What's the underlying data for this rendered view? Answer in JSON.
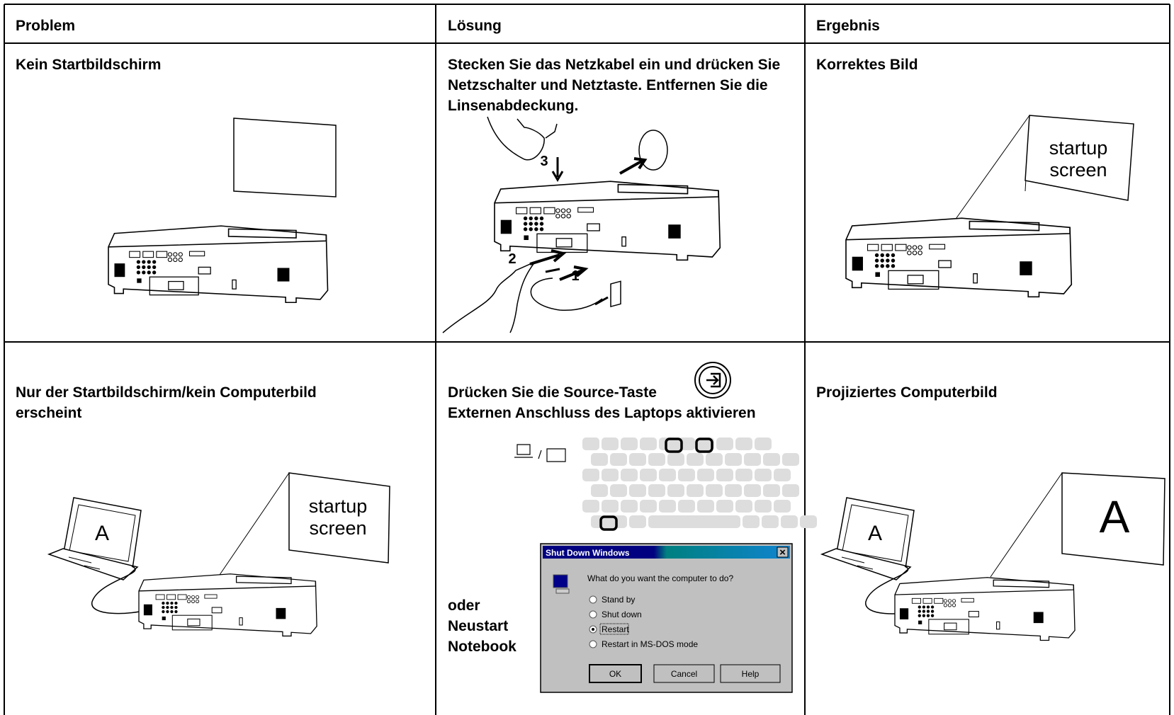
{
  "table": {
    "headers": [
      "Problem",
      "Lösung",
      "Ergebnis"
    ],
    "rows": [
      {
        "problem": "Kein Startbildschirm",
        "solution": [
          "Stecken Sie das Netzkabel ein und drücken Sie Netzschalter und Netztaste. Entfernen Sie die Linsenabdeckung."
        ],
        "result": "Korrektes Bild"
      },
      {
        "problem": "Nur der Startbildschirm/kein Computerbild erscheint",
        "solution": [
          "Drücken Sie die Source-Taste",
          "Externen Anschluss des Laptops aktivieren"
        ],
        "result": "Projiziertes Computerbild"
      }
    ]
  },
  "illustrations": {
    "step_numbers": [
      "1",
      "2",
      "3"
    ],
    "screen_text": [
      "startup",
      "screen"
    ],
    "laptop_letter": "A",
    "alternative": "oder Neustart Notebook",
    "dialog": {
      "title": "Shut Down Windows",
      "close": "×",
      "question": "What do you want the computer to do?",
      "options": [
        "Stand by",
        "Shut down",
        "Restart",
        "Restart in MS-DOS mode"
      ],
      "buttons": [
        "OK",
        "Cancel",
        "Help"
      ]
    }
  }
}
